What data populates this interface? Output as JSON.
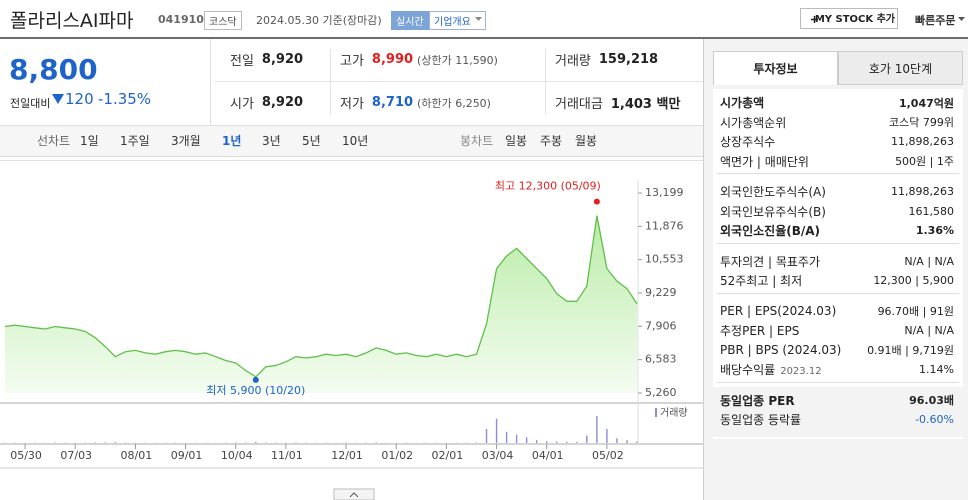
{
  "header": {
    "title": "폴라리스AI파마",
    "code": "041910",
    "market": "코스닥",
    "date": "2024.05.30 기준(장마감)",
    "realtime": "실시간",
    "overview": "기업개요",
    "mystock": "MY STOCK 추가",
    "quick_order": "빠른주문"
  },
  "price": {
    "current": "8,800",
    "change_label": "전일대비",
    "change": "120",
    "change_rate": "-1.35%"
  },
  "summary": [
    [
      {
        "label": "전일",
        "value": "8,920"
      },
      {
        "label": "고가",
        "value": "8,990",
        "note": "(상한가 11,590)",
        "color": "#e0201f"
      },
      {
        "label": "거래량",
        "value": "159,218"
      }
    ],
    [
      {
        "label": "시가",
        "value": "8,920"
      },
      {
        "label": "저가",
        "value": "8,710",
        "note": "(하한가 6,250)",
        "color": "#1e63c9"
      },
      {
        "label": "거래대금",
        "value": "1,403 백만"
      }
    ]
  ],
  "chart_tabs": {
    "line_label": "선차트",
    "periods": [
      "1일",
      "1주일",
      "3개월",
      "1년",
      "3년",
      "5년",
      "10년"
    ],
    "selected": "1년",
    "candle_label": "봉차트",
    "candles": [
      "일봉",
      "주봉",
      "월봉"
    ]
  },
  "side": {
    "tabs": [
      "투자정보",
      "호가 10단계"
    ],
    "sections": [
      [
        {
          "label": "시가총액",
          "value": "1,047억원",
          "bold": true
        },
        {
          "label": "시가총액순위",
          "value": "코스닥 799위"
        },
        {
          "label": "상장주식수",
          "value": "11,898,263"
        },
        {
          "label": "액면가 | 매매단위",
          "value": "500원 | 1주"
        }
      ],
      [
        {
          "label": "외국인한도주식수(A)",
          "value": "11,898,263"
        },
        {
          "label": "외국인보유주식수(B)",
          "value": "161,580"
        },
        {
          "label": "외국인소진율(B/A)",
          "value": "1.36%",
          "bold": true
        }
      ],
      [
        {
          "label": "투자의견 | 목표주가",
          "value": "N/A | N/A"
        },
        {
          "label": "52주최고 | 최저",
          "value": "12,300 | 5,900"
        }
      ],
      [
        {
          "label": "PER | EPS(2024.03)",
          "value": "96.70배 | 91원"
        },
        {
          "label": "추정PER | EPS",
          "value": "N/A | N/A"
        },
        {
          "label": "PBR | BPS (2024.03)",
          "value": "0.91배 | 9,719원"
        },
        {
          "label": "배당수익률",
          "sub": "2023.12",
          "value": "1.14%"
        }
      ],
      [
        {
          "label": "동일업종 PER",
          "value": "96.03배",
          "bold": true
        },
        {
          "label": "동일업종 등락률",
          "value": "-0.60%",
          "value_color": "#1e63c9"
        }
      ]
    ]
  },
  "chart_data": {
    "type": "line",
    "color": "#5fbf4a",
    "categories": [
      null,
      null,
      "05/30",
      null,
      null,
      null,
      null,
      "07/03",
      null,
      null,
      null,
      null,
      null,
      "08/01",
      null,
      null,
      null,
      null,
      "09/01",
      null,
      null,
      null,
      null,
      "10/04",
      null,
      null,
      null,
      null,
      "11/01",
      null,
      null,
      null,
      null,
      null,
      "12/01",
      null,
      null,
      null,
      null,
      "01/02",
      null,
      null,
      null,
      null,
      "02/01",
      null,
      null,
      null,
      null,
      "03/04",
      null,
      null,
      null,
      null,
      "04/01",
      null,
      null,
      null,
      null,
      null,
      "05/02",
      null,
      null,
      null
    ],
    "values": [
      7900,
      7950,
      7900,
      7850,
      7800,
      7900,
      7850,
      7800,
      7700,
      7450,
      7100,
      6700,
      6900,
      6950,
      6850,
      6800,
      6900,
      6950,
      6900,
      6800,
      6850,
      6700,
      6550,
      6450,
      6150,
      5900,
      6300,
      6350,
      6500,
      6700,
      6650,
      6700,
      6800,
      6750,
      6800,
      6700,
      6850,
      7050,
      6950,
      6800,
      6850,
      6750,
      6700,
      6800,
      6700,
      6800,
      6700,
      6800,
      8000,
      10200,
      10700,
      11000,
      10600,
      10200,
      9800,
      9200,
      8900,
      8900,
      9500,
      12300,
      10200,
      9700,
      9400,
      8800
    ],
    "ylim": [
      5260,
      13199
    ],
    "yticks": [
      {
        "value": 5260,
        "label": "5,260"
      },
      {
        "value": 6583,
        "label": "6,583"
      },
      {
        "value": 7906,
        "label": "7,906"
      },
      {
        "value": 9229,
        "label": "9,229"
      },
      {
        "value": 10553,
        "label": "10,553"
      },
      {
        "value": 11876,
        "label": "11,876"
      },
      {
        "value": 13199,
        "label": "13,199"
      }
    ],
    "max_label": "최고 12,300 (05/09)",
    "min_label": "최저 5,900 (10/20)",
    "volume": {
      "label": "거래량",
      "color": "#8f8bd6",
      "ylim": [
        0,
        3000000
      ],
      "values": [
        40000,
        35000,
        30000,
        45000,
        30000,
        50000,
        35000,
        30000,
        40000,
        60000,
        70000,
        90000,
        40000,
        35000,
        30000,
        30000,
        35000,
        40000,
        30000,
        30000,
        35000,
        30000,
        40000,
        45000,
        60000,
        120000,
        50000,
        40000,
        35000,
        60000,
        40000,
        30000,
        35000,
        30000,
        40000,
        30000,
        45000,
        70000,
        40000,
        30000,
        35000,
        30000,
        30000,
        35000,
        30000,
        30000,
        40000,
        60000,
        1500000,
        2600000,
        1200000,
        900000,
        600000,
        300000,
        200000,
        150000,
        120000,
        100000,
        800000,
        2900000,
        1500000,
        500000,
        300000,
        159218
      ]
    }
  }
}
